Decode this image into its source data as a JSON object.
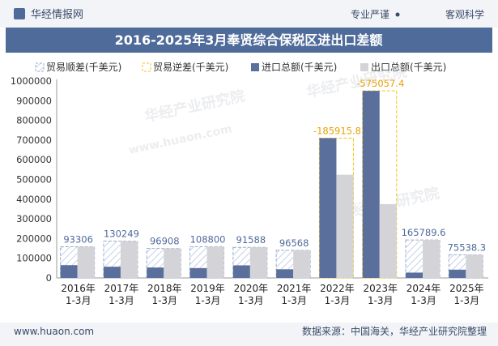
{
  "header": {
    "brand": "华经情报网",
    "slogan_left": "专业严谨",
    "slogan_right": "客观科学",
    "title": "2016-2025年3月奉贤综合保税区进出口差额"
  },
  "footer": {
    "url": "www.huaon.com",
    "source": "数据来源：中国海关，华经产业研究院整理"
  },
  "colors": {
    "title_bar": "#4f6b9a",
    "import": "#5b6f9c",
    "export": "#d4d4d8",
    "surplus_border": "#9aaed0",
    "deficit_border": "#f5c518",
    "surplus_label": "#4f6b9a",
    "deficit_label": "#e9a100"
  },
  "chart_data": {
    "type": "bar",
    "categories": [
      "2016年\n1-3月",
      "2017年\n1-3月",
      "2018年\n1-3月",
      "2019年\n1-3月",
      "2020年\n1-3月",
      "2021年\n1-3月",
      "2022年\n1-3月",
      "2023年\n1-3月",
      "2024年\n1-3月",
      "2025年\n1-3月"
    ],
    "legend": [
      "贸易顺差(千美元)",
      "贸易逆差(千美元)",
      "进口总额(千美元)",
      "出口总额(千美元)"
    ],
    "series": [
      {
        "name": "进口总额(千美元)",
        "values": [
          65000,
          57000,
          53000,
          50000,
          64000,
          44000,
          710000,
          950000,
          27000,
          42000
        ]
      },
      {
        "name": "出口总额(千美元)",
        "values": [
          158306,
          187249,
          149908,
          158800,
          155588,
          140568,
          524084,
          374943,
          192790,
          117538
        ]
      }
    ],
    "balance": [
      93306,
      130249,
      96908,
      108800,
      91588,
      96568,
      -185915.8,
      -575057.4,
      165789.6,
      75538.3
    ],
    "balance_labels": [
      "93306",
      "130249",
      "96908",
      "108800",
      "91588",
      "96568",
      "-185915.8",
      "-575057.4",
      "165789.6",
      "75538.3"
    ],
    "yticks": [
      0,
      100000,
      200000,
      300000,
      400000,
      500000,
      600000,
      700000,
      800000,
      900000,
      1000000
    ],
    "ylim": [
      0,
      1000000
    ],
    "xlabel": "",
    "ylabel": ""
  }
}
